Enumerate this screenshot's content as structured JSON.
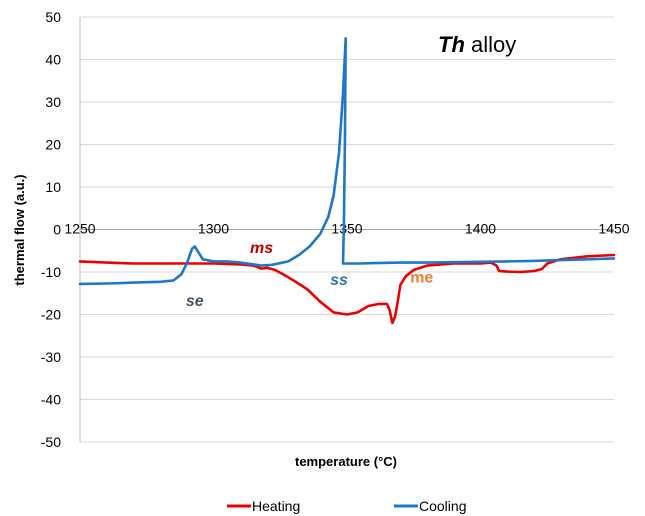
{
  "chart_data": {
    "type": "line",
    "title_italic": "Th",
    "title_rest": " alloy",
    "xlabel": "temperature (°C)",
    "ylabel": "thermal flow (a.u.)",
    "xlim": [
      1250,
      1450
    ],
    "ylim": [
      -50,
      50
    ],
    "x_ticks": [
      1250,
      1300,
      1350,
      1400,
      1450
    ],
    "y_ticks": [
      50,
      40,
      30,
      20,
      10,
      0,
      -10,
      -20,
      -30,
      -40,
      -50
    ],
    "grid": "horizontal",
    "legend_position": "bottom",
    "annotations": [
      {
        "text": "ms",
        "x": 1318,
        "y": -5.5,
        "color": "#c00000",
        "italic": true
      },
      {
        "text": "se",
        "x": 1293,
        "y": -18,
        "color": "#44546a",
        "italic": true
      },
      {
        "text": "ss",
        "x": 1347,
        "y": -13,
        "color": "#2e75b6",
        "italic": true
      },
      {
        "text": "me",
        "x": 1378,
        "y": -12.5,
        "color": "#ed7d31",
        "italic": false
      }
    ],
    "series": [
      {
        "name": "Heating",
        "color": "#ee0000",
        "points": [
          [
            1250,
            -7.5
          ],
          [
            1260,
            -7.8
          ],
          [
            1270,
            -8
          ],
          [
            1280,
            -8
          ],
          [
            1290,
            -8
          ],
          [
            1300,
            -8
          ],
          [
            1310,
            -8.2
          ],
          [
            1315,
            -8.5
          ],
          [
            1318,
            -9.2
          ],
          [
            1320,
            -9
          ],
          [
            1323,
            -9.5
          ],
          [
            1326,
            -10.5
          ],
          [
            1330,
            -12
          ],
          [
            1335,
            -14
          ],
          [
            1340,
            -17
          ],
          [
            1345,
            -19.5
          ],
          [
            1350,
            -20
          ],
          [
            1354,
            -19.5
          ],
          [
            1358,
            -18
          ],
          [
            1362,
            -17.5
          ],
          [
            1365,
            -17.5
          ],
          [
            1366,
            -19
          ],
          [
            1367,
            -22
          ],
          [
            1368,
            -20.5
          ],
          [
            1369,
            -17
          ],
          [
            1370,
            -13
          ],
          [
            1372,
            -11
          ],
          [
            1375,
            -9.5
          ],
          [
            1380,
            -8.5
          ],
          [
            1390,
            -8
          ],
          [
            1400,
            -8
          ],
          [
            1404,
            -7.8
          ],
          [
            1406,
            -8.5
          ],
          [
            1407,
            -9.8
          ],
          [
            1410,
            -9.9
          ],
          [
            1415,
            -10
          ],
          [
            1420,
            -9.8
          ],
          [
            1423,
            -9.3
          ],
          [
            1425,
            -8
          ],
          [
            1430,
            -7
          ],
          [
            1440,
            -6.3
          ],
          [
            1450,
            -6
          ]
        ]
      },
      {
        "name": "Cooling",
        "color": "#1f77c9",
        "points": [
          [
            1250,
            -12.8
          ],
          [
            1260,
            -12.7
          ],
          [
            1270,
            -12.5
          ],
          [
            1280,
            -12.3
          ],
          [
            1285,
            -12
          ],
          [
            1288,
            -10.5
          ],
          [
            1290,
            -8
          ],
          [
            1292,
            -4.5
          ],
          [
            1293,
            -4
          ],
          [
            1294,
            -5
          ],
          [
            1296,
            -7
          ],
          [
            1300,
            -7.5
          ],
          [
            1305,
            -7.5
          ],
          [
            1310,
            -7.8
          ],
          [
            1315,
            -8.2
          ],
          [
            1318,
            -8.5
          ],
          [
            1322,
            -8.3
          ],
          [
            1328,
            -7.5
          ],
          [
            1332,
            -6
          ],
          [
            1336,
            -4
          ],
          [
            1340,
            -1
          ],
          [
            1343,
            3
          ],
          [
            1345,
            8
          ],
          [
            1347,
            18
          ],
          [
            1348.5,
            32
          ],
          [
            1349.5,
            45
          ],
          [
            1349.2,
            20
          ],
          [
            1348.8,
            0
          ],
          [
            1348.5,
            -8
          ],
          [
            1355,
            -8
          ],
          [
            1360,
            -7.9
          ],
          [
            1370,
            -7.8
          ],
          [
            1380,
            -7.8
          ],
          [
            1390,
            -7.7
          ],
          [
            1400,
            -7.6
          ],
          [
            1410,
            -7.5
          ],
          [
            1420,
            -7.4
          ],
          [
            1430,
            -7.2
          ],
          [
            1440,
            -7
          ],
          [
            1450,
            -6.8
          ]
        ]
      }
    ]
  }
}
